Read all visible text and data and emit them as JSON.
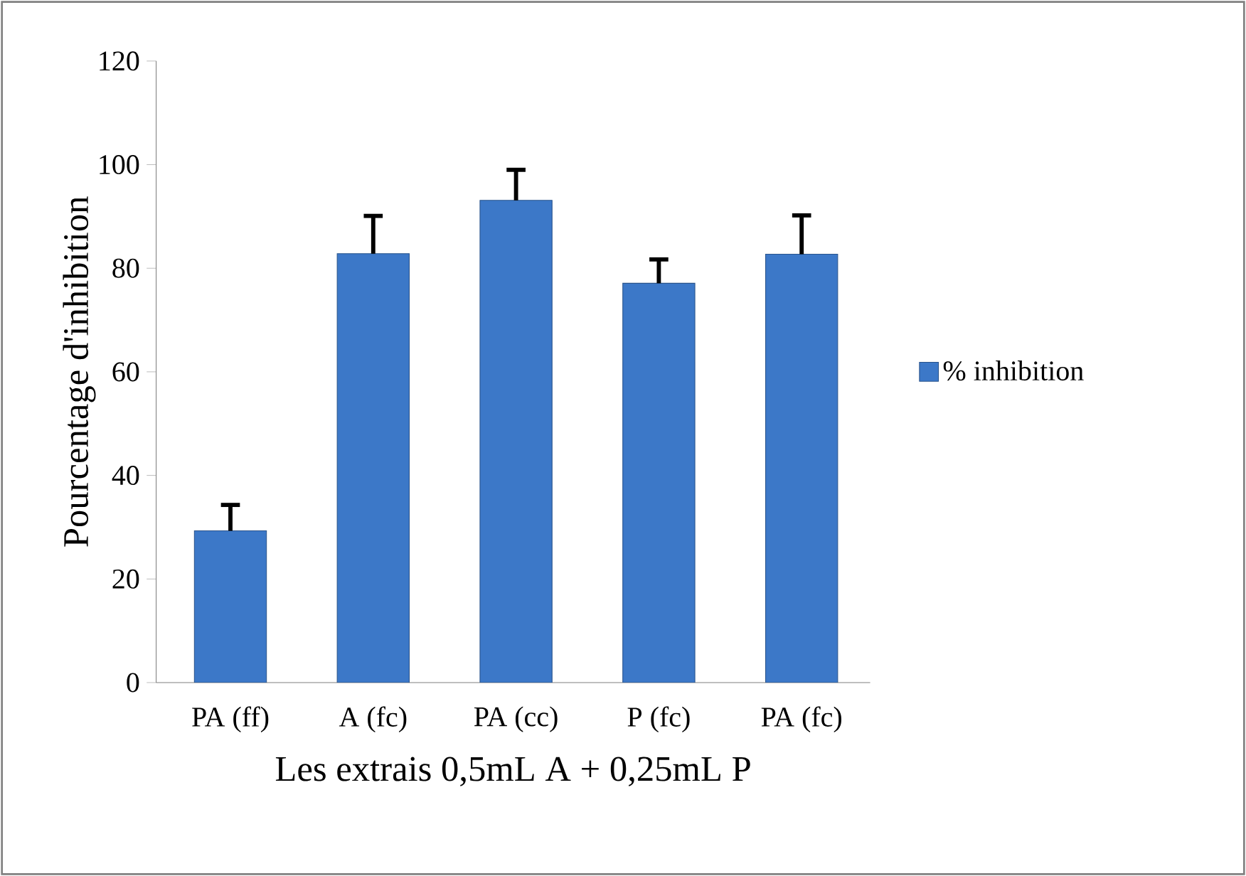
{
  "chart_data": {
    "type": "bar",
    "xlabel": "Les extrais 0,5mL A + 0,25mL P",
    "ylabel": "Pourcentage d'inhibition",
    "categories": [
      "PA (ff)",
      "A (fc)",
      "PA (cc)",
      "P (fc)",
      "PA (fc)"
    ],
    "series": [
      {
        "name": "% inhibition",
        "color": "#3c78c8",
        "values": [
          29.3,
          82.8,
          93.1,
          77.1,
          82.7
        ],
        "errors": [
          5,
          7.3,
          5.9,
          4.6,
          7.5
        ]
      }
    ],
    "ylim": [
      0,
      120
    ],
    "yticks": [
      0,
      20,
      40,
      60,
      80,
      100,
      120
    ],
    "grid": false,
    "legend": "right"
  }
}
